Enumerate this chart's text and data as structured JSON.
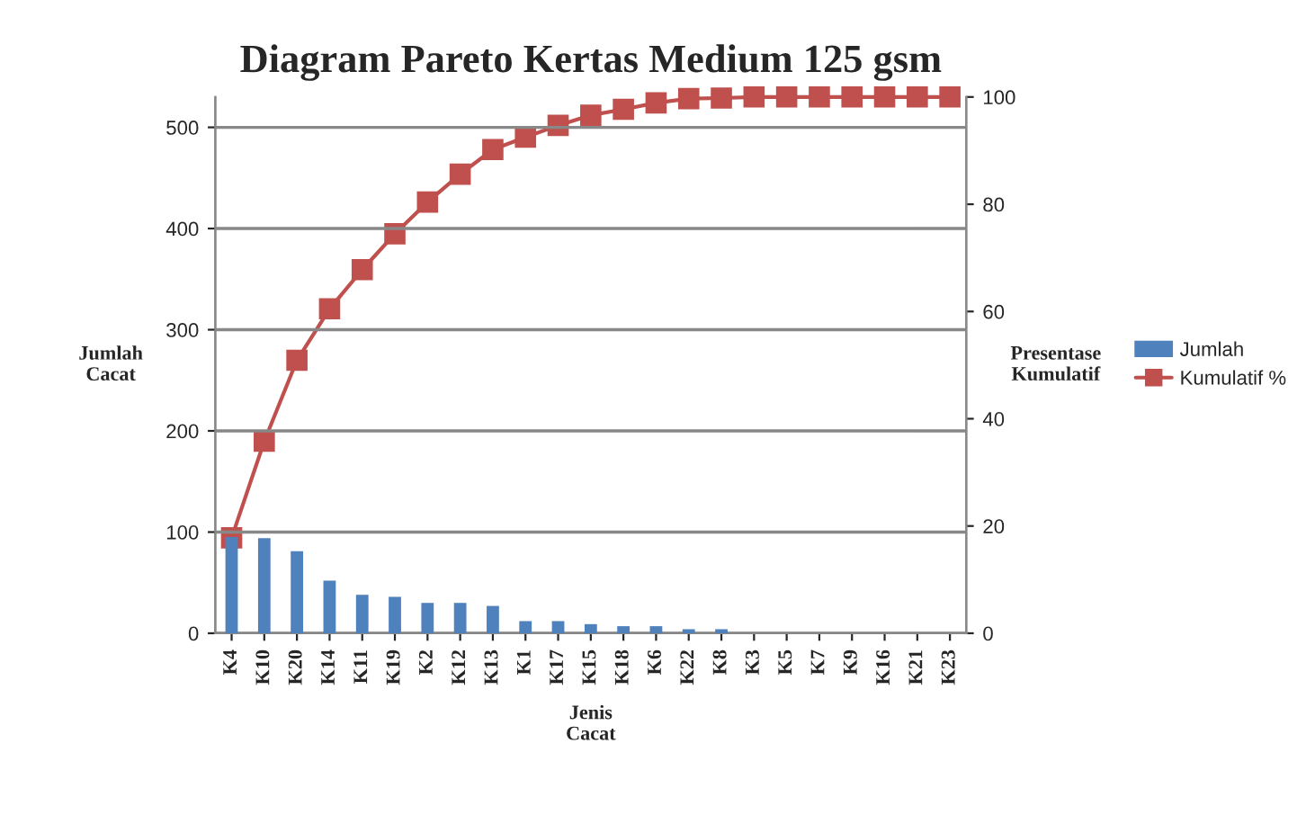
{
  "chart_data": {
    "type": "bar",
    "title": "Diagram Pareto Kertas Medium 125 gsm",
    "xlabel": "Jenis\nCacat",
    "ylabel": "Jumlah\nCacat",
    "y2label": "Presentase\nKumulatif",
    "categories": [
      "K4",
      "K10",
      "K20",
      "K14",
      "K11",
      "K19",
      "K2",
      "K12",
      "K13",
      "K1",
      "K17",
      "K15",
      "K18",
      "K6",
      "K22",
      "K8",
      "K3",
      "K5",
      "K7",
      "K9",
      "K16",
      "K21",
      "K23"
    ],
    "series": [
      {
        "name": "Jumlah",
        "color": "#4f81bd",
        "values": [
          95,
          94,
          81,
          52,
          38,
          36,
          30,
          30,
          27,
          12,
          12,
          9,
          7,
          7,
          4,
          4,
          0,
          0,
          0,
          0,
          0,
          0,
          0
        ]
      },
      {
        "name": "Kumulatif %",
        "type": "line",
        "axis": "y2",
        "color": "#c0504d",
        "marker": "square",
        "values": [
          17.8,
          35.8,
          50.9,
          60.5,
          67.8,
          74.5,
          80.4,
          85.6,
          90.2,
          92.5,
          94.7,
          96.6,
          97.7,
          98.9,
          99.7,
          99.8,
          100,
          100,
          100,
          100,
          100,
          100,
          100
        ]
      }
    ],
    "ylim": [
      0,
      530
    ],
    "yticks": [
      0,
      100,
      200,
      300,
      400,
      500
    ],
    "y2lim": [
      0,
      100
    ],
    "y2ticks": [
      0,
      20,
      40,
      60,
      80,
      100
    ],
    "grid": "y",
    "legend": "right"
  }
}
